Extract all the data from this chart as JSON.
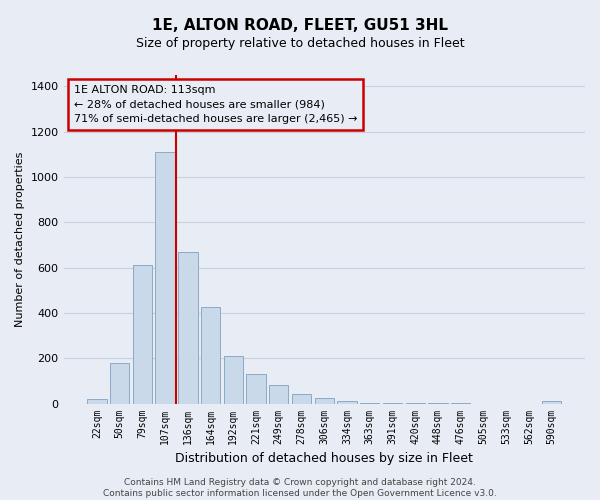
{
  "title": "1E, ALTON ROAD, FLEET, GU51 3HL",
  "subtitle": "Size of property relative to detached houses in Fleet",
  "xlabel": "Distribution of detached houses by size in Fleet",
  "ylabel": "Number of detached properties",
  "categories": [
    "22sqm",
    "50sqm",
    "79sqm",
    "107sqm",
    "136sqm",
    "164sqm",
    "192sqm",
    "221sqm",
    "249sqm",
    "278sqm",
    "306sqm",
    "334sqm",
    "363sqm",
    "391sqm",
    "420sqm",
    "448sqm",
    "476sqm",
    "505sqm",
    "533sqm",
    "562sqm",
    "590sqm"
  ],
  "values": [
    20,
    180,
    610,
    1110,
    670,
    425,
    210,
    130,
    83,
    40,
    25,
    12,
    3,
    3,
    3,
    1,
    1,
    0,
    0,
    0,
    13
  ],
  "bar_color": "#c9d9ea",
  "bar_edge_color": "#8aaac8",
  "grid_color": "#c8d0dc",
  "background_color": "#e8edf5",
  "annotation_text": "1E ALTON ROAD: 113sqm\n← 28% of detached houses are smaller (984)\n71% of semi-detached houses are larger (2,465) →",
  "vline_color": "#cc0000",
  "annotation_box_edgecolor": "#cc0000",
  "ylim_max": 1450,
  "yticks": [
    0,
    200,
    400,
    600,
    800,
    1000,
    1200,
    1400
  ],
  "footer": "Contains HM Land Registry data © Crown copyright and database right 2024.\nContains public sector information licensed under the Open Government Licence v3.0.",
  "title_fontsize": 11,
  "subtitle_fontsize": 9,
  "ylabel_fontsize": 8,
  "xlabel_fontsize": 9,
  "tick_fontsize": 7,
  "footer_fontsize": 6.5
}
